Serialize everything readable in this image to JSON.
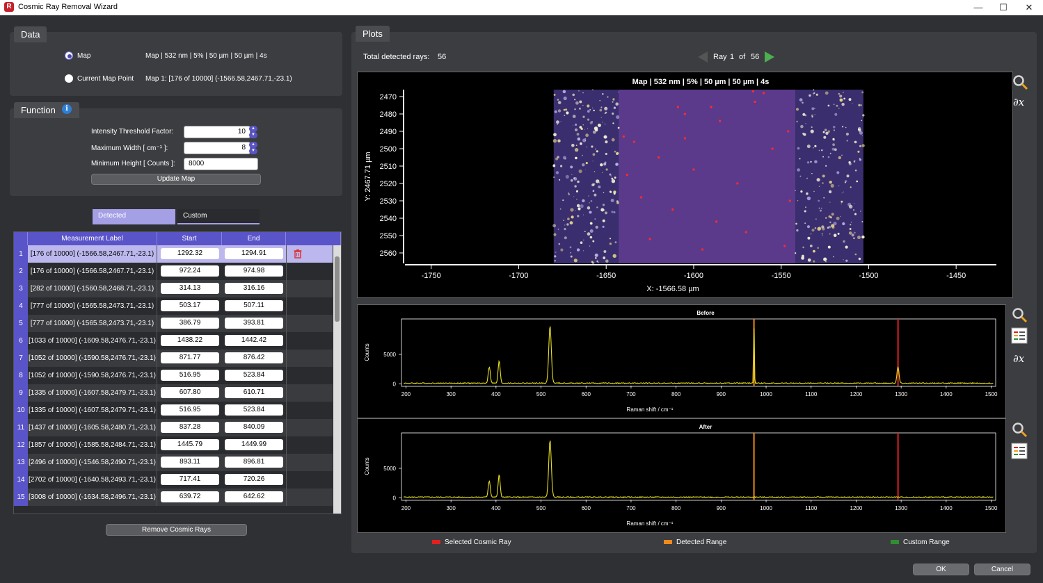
{
  "window": {
    "title": "Cosmic Ray Removal Wizard",
    "app_letter": "R",
    "minimize": "—",
    "maximize": "☐",
    "close": "✕"
  },
  "data_panel": {
    "title": "Data",
    "options": [
      {
        "label": "Map",
        "value": "Map | 532 nm | 5% | 50 µm | 50 µm | 4s",
        "selected": true
      },
      {
        "label": "Current Map Point",
        "value": "Map 1: [176 of 10000] (-1566.58,2467.71,-23.1)",
        "selected": false
      }
    ]
  },
  "function_panel": {
    "title": "Function",
    "intensity_label": "Intensity Threshold Factor:",
    "intensity_value": "10",
    "width_label": "Maximum Width [ cm⁻¹ ]:",
    "width_value": "8",
    "height_label": "Minimum Height [ Counts ]:",
    "height_value": "8000",
    "update_button": "Update Map"
  },
  "tabs": {
    "detected": "Detected",
    "custom": "Custom"
  },
  "table": {
    "columns": [
      "Measurement Label",
      "Start",
      "End"
    ],
    "rows": [
      {
        "n": "1",
        "label": "[176 of 10000] (-1566.58,2467.71,-23.1)",
        "start": "1292.32",
        "end": "1294.91"
      },
      {
        "n": "2",
        "label": "[176 of 10000] (-1566.58,2467.71,-23.1)",
        "start": "972.24",
        "end": "974.98"
      },
      {
        "n": "3",
        "label": "[282 of 10000] (-1560.58,2468.71,-23.1)",
        "start": "314.13",
        "end": "316.16"
      },
      {
        "n": "4",
        "label": "[777 of 10000] (-1565.58,2473.71,-23.1)",
        "start": "503.17",
        "end": "507.11"
      },
      {
        "n": "5",
        "label": "[777 of 10000] (-1565.58,2473.71,-23.1)",
        "start": "386.79",
        "end": "393.81"
      },
      {
        "n": "6",
        "label": "[1033 of 10000] (-1609.58,2476.71,-23.1)",
        "start": "1438.22",
        "end": "1442.42"
      },
      {
        "n": "7",
        "label": "[1052 of 10000] (-1590.58,2476.71,-23.1)",
        "start": "871.77",
        "end": "876.42"
      },
      {
        "n": "8",
        "label": "[1052 of 10000] (-1590.58,2476.71,-23.1)",
        "start": "516.95",
        "end": "523.84"
      },
      {
        "n": "9",
        "label": "[1335 of 10000] (-1607.58,2479.71,-23.1)",
        "start": "607.80",
        "end": "610.71"
      },
      {
        "n": "10",
        "label": "[1335 of 10000] (-1607.58,2479.71,-23.1)",
        "start": "516.95",
        "end": "523.84"
      },
      {
        "n": "11",
        "label": "[1437 of 10000] (-1605.58,2480.71,-23.1)",
        "start": "837.28",
        "end": "840.09"
      },
      {
        "n": "12",
        "label": "[1857 of 10000] (-1585.58,2484.71,-23.1)",
        "start": "1445.79",
        "end": "1449.99"
      },
      {
        "n": "13",
        "label": "[2496 of 10000] (-1546.58,2490.71,-23.1)",
        "start": "893.11",
        "end": "896.81"
      },
      {
        "n": "14",
        "label": "[2702 of 10000] (-1640.58,2493.71,-23.1)",
        "start": "717.41",
        "end": "720.26"
      },
      {
        "n": "15",
        "label": "[3008 of 10000] (-1634.58,2496.71,-23.1)",
        "start": "639.72",
        "end": "642.62"
      }
    ]
  },
  "remove_button": "Remove Cosmic Rays",
  "plots": {
    "title": "Plots",
    "total_label": "Total detected rays:",
    "total_value": "56",
    "ray_label": "Ray",
    "ray_current": "1",
    "ray_of": "of",
    "ray_total": "56",
    "legend": [
      {
        "label": "Selected Cosmic Ray",
        "color": "#e02020"
      },
      {
        "label": "Detected Range",
        "color": "#f08a1c"
      },
      {
        "label": "Custom Range",
        "color": "#2f8f2f"
      }
    ]
  },
  "chart_data": [
    {
      "type": "heatmap",
      "title": "Map | 532 nm | 5% | 50 µm | 50 µm | 4s",
      "xlabel": "X: -1566.58 µm",
      "ylabel": "Y: 2467.71 µm",
      "x_ticks": [
        -1750,
        -1700,
        -1650,
        -1600,
        -1550,
        -1500,
        -1450
      ],
      "y_ticks": [
        2470,
        2480,
        2490,
        2500,
        2510,
        2520,
        2530,
        2540,
        2550,
        2560
      ],
      "xlim": [
        -1765,
        -1427
      ],
      "ylim": [
        2466,
        2566
      ],
      "image_extent_x": [
        -1680,
        -1503
      ],
      "cosmic_ray_points": [
        [
          -1609,
          2476
        ],
        [
          -1590,
          2476
        ],
        [
          -1605,
          2480
        ],
        [
          -1585,
          2484
        ],
        [
          -1546,
          2490
        ],
        [
          -1640,
          2493
        ],
        [
          -1634,
          2496
        ],
        [
          -1566,
          2467
        ],
        [
          -1560,
          2468
        ],
        [
          -1565,
          2473
        ],
        [
          -1620,
          2505
        ],
        [
          -1600,
          2512
        ],
        [
          -1575,
          2520
        ],
        [
          -1555,
          2500
        ],
        [
          -1630,
          2528
        ],
        [
          -1612,
          2535
        ],
        [
          -1587,
          2542
        ],
        [
          -1570,
          2548
        ],
        [
          -1548,
          2556
        ],
        [
          -1625,
          2552
        ],
        [
          -1595,
          2558
        ],
        [
          -1638,
          2515
        ],
        [
          -1545,
          2530
        ],
        [
          -1605,
          2494
        ]
      ]
    },
    {
      "type": "line",
      "title": "Before",
      "xlabel": "Raman shift / cm⁻¹",
      "ylabel": "Counts",
      "x_ticks": [
        200,
        300,
        400,
        500,
        600,
        700,
        800,
        900,
        1000,
        1100,
        1200,
        1300,
        1400,
        1500
      ],
      "y_ticks": [
        0,
        5000
      ],
      "xlim": [
        190,
        1510
      ],
      "ylim": [
        -300,
        11000
      ],
      "peaks": [
        {
          "x": 385,
          "y": 2800
        },
        {
          "x": 407,
          "y": 3800
        },
        {
          "x": 520,
          "y": 9700
        },
        {
          "x": 973,
          "y": 11000
        },
        {
          "x": 1293,
          "y": 2800
        }
      ],
      "markers": [
        {
          "x": 973,
          "color": "#f08a1c"
        },
        {
          "x": 1293,
          "color": "#e02020"
        }
      ]
    },
    {
      "type": "line",
      "title": "After",
      "xlabel": "Raman shift / cm⁻¹",
      "ylabel": "Counts",
      "x_ticks": [
        200,
        300,
        400,
        500,
        600,
        700,
        800,
        900,
        1000,
        1100,
        1200,
        1300,
        1400,
        1500
      ],
      "y_ticks": [
        0,
        5000
      ],
      "xlim": [
        190,
        1510
      ],
      "ylim": [
        -300,
        11000
      ],
      "peaks": [
        {
          "x": 385,
          "y": 2800
        },
        {
          "x": 407,
          "y": 3800
        },
        {
          "x": 520,
          "y": 9700
        }
      ],
      "markers": [
        {
          "x": 973,
          "color": "#f08a1c"
        },
        {
          "x": 1293,
          "color": "#e02020"
        }
      ]
    }
  ],
  "dialog_buttons": {
    "ok": "OK",
    "cancel": "Cancel"
  }
}
